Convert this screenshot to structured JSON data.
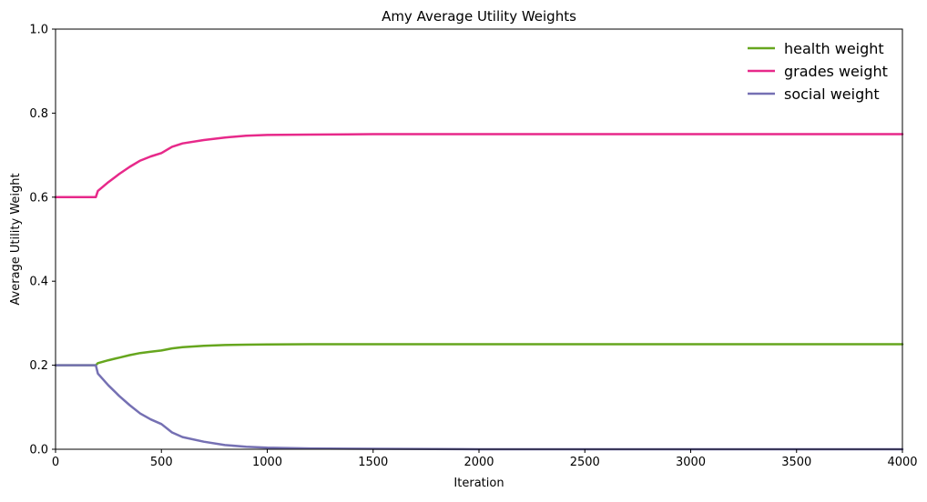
{
  "chart_data": {
    "type": "line",
    "title": "Amy Average Utility Weights",
    "xlabel": "Iteration",
    "ylabel": "Average Utility Weight",
    "xlim": [
      0,
      4000
    ],
    "ylim": [
      0,
      1.0
    ],
    "xticks": [
      0,
      500,
      1000,
      1500,
      2000,
      2500,
      3000,
      3500,
      4000
    ],
    "xtick_labels": [
      "0",
      "500",
      "1000",
      "1500",
      "2000",
      "2500",
      "3000",
      "3500",
      "4000"
    ],
    "yticks": [
      0.0,
      0.2,
      0.4,
      0.6,
      0.8,
      1.0
    ],
    "ytick_labels": [
      "0.0",
      "0.2",
      "0.4",
      "0.6",
      "0.8",
      "1.0"
    ],
    "grid": false,
    "legend_position": "top-right",
    "series": [
      {
        "name": "health weight",
        "color": "#66a61e",
        "x": [
          0,
          190,
          200,
          250,
          300,
          350,
          400,
          450,
          500,
          550,
          600,
          700,
          800,
          900,
          1000,
          1200,
          1500,
          2000,
          3000,
          4000
        ],
        "y": [
          0.2,
          0.2,
          0.205,
          0.212,
          0.218,
          0.224,
          0.229,
          0.232,
          0.235,
          0.24,
          0.243,
          0.246,
          0.248,
          0.249,
          0.2495,
          0.25,
          0.25,
          0.25,
          0.25,
          0.25
        ]
      },
      {
        "name": "grades weight",
        "color": "#e7298a",
        "x": [
          0,
          190,
          200,
          250,
          300,
          350,
          400,
          450,
          500,
          550,
          600,
          700,
          800,
          900,
          1000,
          1200,
          1500,
          2000,
          3000,
          4000
        ],
        "y": [
          0.6,
          0.6,
          0.615,
          0.636,
          0.655,
          0.672,
          0.687,
          0.697,
          0.705,
          0.72,
          0.728,
          0.736,
          0.742,
          0.746,
          0.748,
          0.749,
          0.75,
          0.75,
          0.75,
          0.75
        ]
      },
      {
        "name": "social weight",
        "color": "#7570b3",
        "x": [
          0,
          190,
          200,
          250,
          300,
          350,
          400,
          450,
          500,
          550,
          600,
          700,
          800,
          900,
          1000,
          1200,
          1500,
          2000,
          3000,
          4000
        ],
        "y": [
          0.2,
          0.2,
          0.18,
          0.152,
          0.127,
          0.105,
          0.085,
          0.071,
          0.06,
          0.04,
          0.029,
          0.018,
          0.01,
          0.006,
          0.004,
          0.002,
          0.001,
          0.0,
          0.0,
          0.0
        ]
      }
    ]
  }
}
